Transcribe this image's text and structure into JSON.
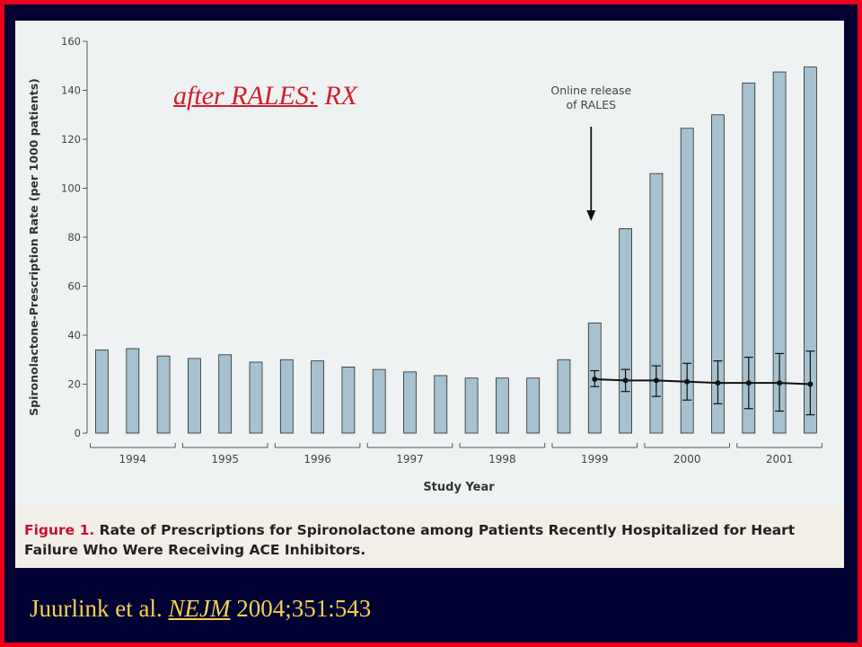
{
  "slide": {
    "title_underlined": "after RALES:",
    "title_rest": " RX",
    "citation": {
      "authors": "Juurlink et al. ",
      "journal": "NEJM",
      "rest": " 2004;351:543"
    }
  },
  "figure": {
    "label": "Figure 1.",
    "caption": " Rate of Prescriptions for Spironolactone among Patients Recently Hospitalized for Heart Failure Who Were Receiving ACE Inhibitors."
  },
  "colors": {
    "bar_fill": "#a6c1cf",
    "bar_stroke": "#2a2a2a",
    "title": "#d21f2b",
    "citation": "#f2d34a",
    "slide_bg": "#000033",
    "frame": "#e8001c"
  },
  "chart_data": {
    "type": "bar",
    "title": "",
    "xlabel": "Study Year",
    "ylabel": "Spironolactone-Prescription Rate (per 1000 patients)",
    "ylim": [
      0,
      160
    ],
    "yticks": [
      0,
      20,
      40,
      60,
      80,
      100,
      120,
      140,
      160
    ],
    "year_groups": [
      "1994",
      "1995",
      "1996",
      "1997",
      "1998",
      "1999",
      "2000",
      "2001"
    ],
    "bars_per_group": 3,
    "series": [
      {
        "values": [
          34,
          34.5,
          31.5,
          30.5,
          32,
          29,
          30,
          29.5,
          27,
          26,
          25,
          23.5,
          22.5,
          22.5,
          22.5,
          30,
          45,
          83.5,
          106,
          124.5,
          130,
          143,
          147.5,
          149.5
        ]
      }
    ],
    "expected_line": {
      "start_index": 16,
      "values": [
        22,
        21.5,
        21.5,
        21,
        20.5,
        20.5,
        20.5,
        20
      ],
      "ci_low": [
        19,
        17,
        15,
        13.5,
        12,
        10,
        9,
        7.5
      ],
      "ci_high": [
        25.5,
        26,
        27.5,
        28.5,
        29.5,
        31,
        32.5,
        33.5
      ]
    },
    "annotation": {
      "text_line1": "Online release",
      "text_line2": "of RALES",
      "at_index": 16
    },
    "grid": false
  }
}
